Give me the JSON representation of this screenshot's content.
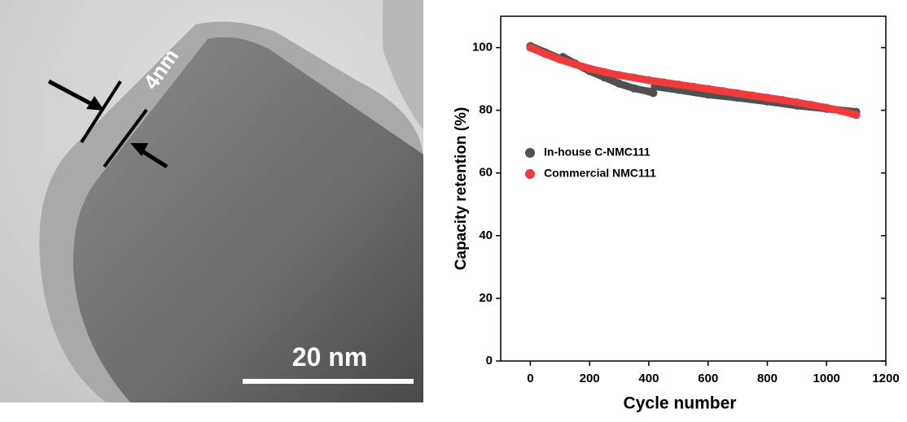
{
  "image": {
    "thickness_label": "4nm",
    "scale_bar_label": "20 nm"
  },
  "chart_data": {
    "type": "line",
    "xlabel": "Cycle number",
    "ylabel": "Capacity retention (%)",
    "xlim": [
      -100,
      1200
    ],
    "xticks": [
      0,
      200,
      400,
      600,
      800,
      1000,
      1200
    ],
    "ylim": [
      0,
      110
    ],
    "yticks": [
      0,
      20,
      40,
      60,
      80,
      100
    ],
    "legend": "upper left",
    "series": [
      {
        "name": "In-house C-NMC111",
        "color": "#505050",
        "x": [
          0,
          50,
          100,
          110,
          150,
          200,
          250,
          300,
          350,
          400,
          415,
          null,
          420,
          500,
          600,
          700,
          800,
          900,
          1000,
          1100
        ],
        "values": [
          100.5,
          98.5,
          96.5,
          97,
          95,
          92.5,
          90.5,
          88.5,
          87,
          86,
          85.5,
          null,
          87.6,
          86.5,
          85,
          84,
          82.8,
          81.5,
          80.5,
          79.5
        ]
      },
      {
        "name": "Commercial NMC111",
        "color": "#ee3b3b",
        "x": [
          0,
          50,
          100,
          150,
          200,
          250,
          300,
          350,
          400,
          450,
          500,
          550,
          600,
          650,
          700,
          750,
          800,
          850,
          900,
          950,
          1000,
          1050,
          1100
        ],
        "values": [
          100,
          98,
          96.2,
          94.7,
          93.3,
          92.2,
          91.2,
          90.4,
          89.6,
          88.9,
          88.2,
          87.5,
          86.8,
          86.1,
          85.4,
          84.7,
          84,
          83.3,
          82.5,
          81.7,
          80.8,
          79.8,
          78.5
        ]
      }
    ]
  }
}
